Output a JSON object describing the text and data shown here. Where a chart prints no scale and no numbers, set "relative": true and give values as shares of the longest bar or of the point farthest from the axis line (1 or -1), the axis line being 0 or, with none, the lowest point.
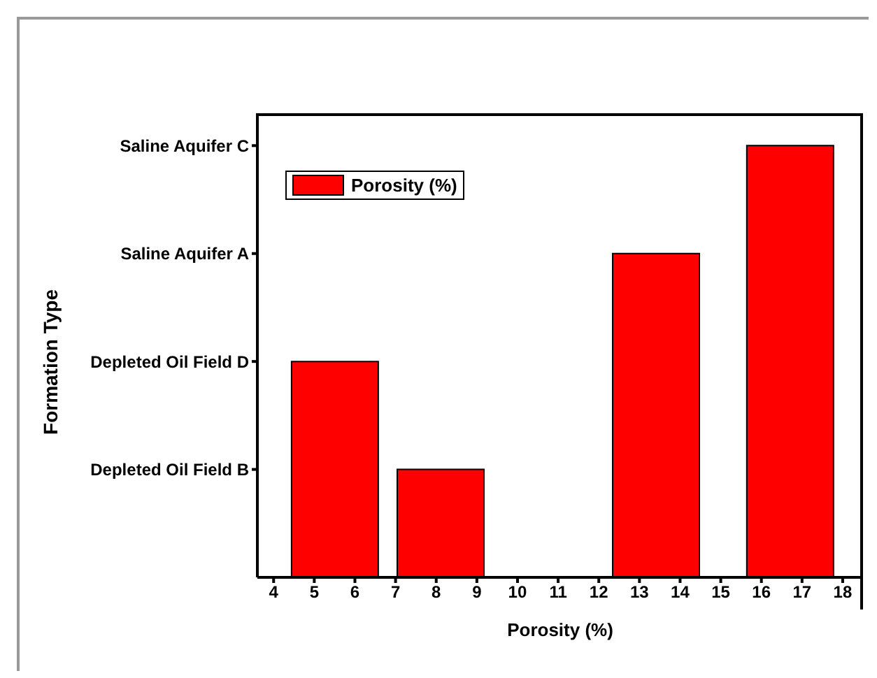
{
  "chart_data": {
    "type": "bar",
    "xlabel": "Porosity (%)",
    "x": [
      5.5,
      8.1,
      13.4,
      16.7
    ],
    "series": [
      {
        "name": "Porosity (%)",
        "color": "#ff0000",
        "values": [
          0.5,
          0.25,
          0.75,
          1
        ]
      }
    ],
    "relative": true,
    "xlim": [
      3.6,
      18.5
    ],
    "xticks": [
      4,
      5,
      6,
      7,
      8,
      9,
      10,
      11,
      12,
      13,
      14,
      15,
      16,
      17,
      18
    ],
    "annotations": [
      "Formation Type",
      "Depleted Oil Field B",
      "Depleted Oil Field D",
      "Saline Aquifer A",
      "Saline Aquifer C"
    ],
    "legend": "top left"
  }
}
